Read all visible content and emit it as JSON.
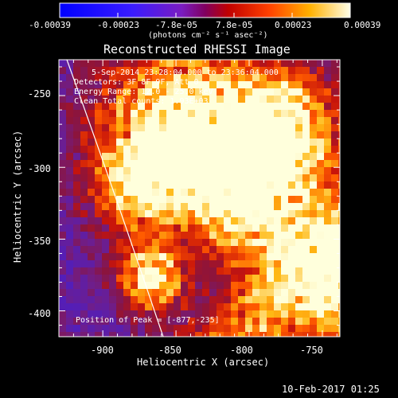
{
  "colorbar": {
    "tick_labels": [
      "-0.00039",
      "-0.00023",
      "-7.8e-05",
      "7.8e-05",
      "0.00023",
      "0.00039"
    ],
    "unit_label": "(photons cm⁻² s⁻¹ asec⁻²)",
    "range": [
      -0.00039,
      0.00039
    ]
  },
  "title": "Reconstructed RHESSI Image",
  "info": {
    "line1": "5-Sep-2014 23:28:04.000 to 23:36:04.000",
    "line2": "Detectors: 3F 8F 9F, Att 0",
    "line3": "Energy Range: 12.0 - 25.0 keV",
    "line4": "Clean    Total counts: 1.93E+03"
  },
  "peak_label": "Position of Peak = [-877,-235]",
  "axes": {
    "xlabel": "Heliocentric X (arcsec)",
    "ylabel": "Heliocentric Y (arcsec)",
    "x_ticks": [
      "-900",
      "-850",
      "-800",
      "-750"
    ],
    "y_ticks": [
      "-250",
      "-300",
      "-350",
      "-400"
    ],
    "xlim": [
      -930,
      -738
    ],
    "ylim": [
      -418,
      -225
    ]
  },
  "timestamp": "10-Feb-2017 01:25"
}
